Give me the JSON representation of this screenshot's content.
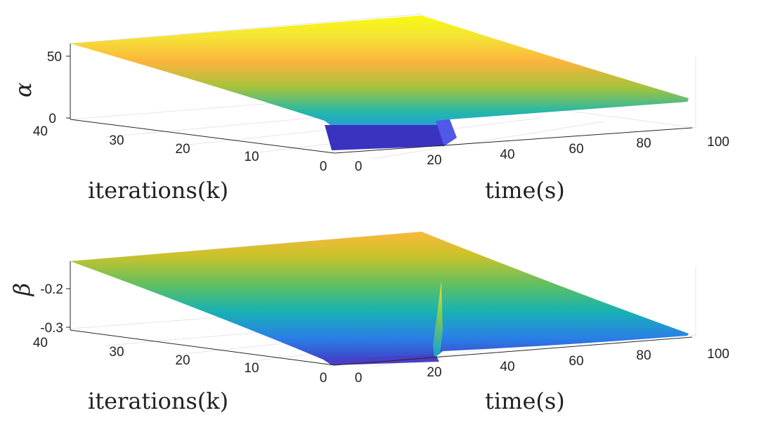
{
  "chart_data": [
    {
      "type": "surface",
      "zlabel": "α",
      "xlabel": "iterations(k)",
      "ylabel": "time(s)",
      "x_ticks": [
        "40",
        "30",
        "20",
        "10",
        "0"
      ],
      "y_ticks": [
        "0",
        "20",
        "40",
        "60",
        "80",
        "100"
      ],
      "z_ticks": [
        "50",
        "0"
      ],
      "xlim": [
        0,
        40
      ],
      "ylim": [
        0,
        100
      ],
      "zlim": [
        0,
        60
      ],
      "colormap": "parula",
      "surface": {
        "value_at_start": 60,
        "value_at_end": 15,
        "low_region_time": [
          0,
          20
        ],
        "low_region_iterations": [
          0,
          5
        ],
        "low_region_value": 0
      }
    },
    {
      "type": "surface",
      "zlabel": "β",
      "xlabel": "iterations(k)",
      "ylabel": "time(s)",
      "x_ticks": [
        "40",
        "30",
        "20",
        "10",
        "0"
      ],
      "y_ticks": [
        "0",
        "20",
        "40",
        "60",
        "80",
        "100"
      ],
      "z_ticks": [
        "-0.2",
        "-0.3"
      ],
      "xlim": [
        0,
        40
      ],
      "ylim": [
        0,
        100
      ],
      "zlim": [
        -0.31,
        -0.13
      ],
      "colormap": "parula",
      "surface": {
        "value_at_start": -0.14,
        "value_at_end": -0.3,
        "spike_time": 20,
        "spike_value": -0.18
      }
    }
  ]
}
